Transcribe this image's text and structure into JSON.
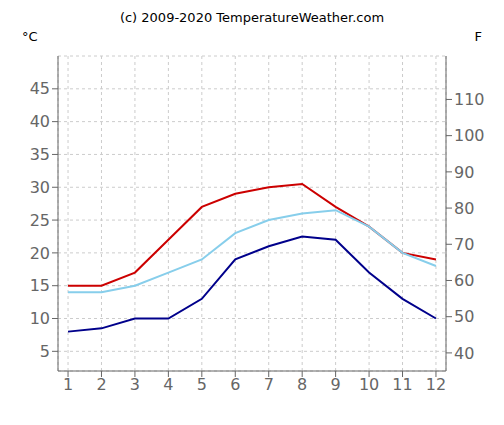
{
  "chart_data": {
    "type": "line",
    "title": "(c) 2009-2020 TemperatureWeather.com",
    "ylabel": "°C",
    "y2label": "F",
    "x": [
      1,
      2,
      3,
      4,
      5,
      6,
      7,
      8,
      9,
      10,
      11,
      12
    ],
    "xlim": [
      0.7,
      12.3
    ],
    "xticks": [
      1,
      2,
      3,
      4,
      5,
      6,
      7,
      8,
      9,
      10,
      11,
      12
    ],
    "ylim": [
      2,
      50
    ],
    "yticks": [
      5,
      10,
      15,
      20,
      25,
      30,
      35,
      40,
      45
    ],
    "y2lim": [
      35,
      122
    ],
    "y2ticks": [
      40,
      50,
      60,
      70,
      80,
      90,
      100,
      110
    ],
    "grid": true,
    "series": [
      {
        "color": "#cc0000",
        "values": [
          15,
          15,
          17,
          22,
          27,
          29,
          30,
          30.5,
          27,
          24,
          20,
          19
        ]
      },
      {
        "color": "#00008b",
        "values": [
          8,
          8.5,
          10,
          10,
          13,
          19,
          21,
          22.5,
          22,
          17,
          13,
          10
        ]
      },
      {
        "color": "#87ceeb",
        "values": [
          14,
          14,
          15,
          17,
          19,
          23,
          25,
          26,
          26.5,
          24,
          20,
          18
        ]
      }
    ]
  }
}
